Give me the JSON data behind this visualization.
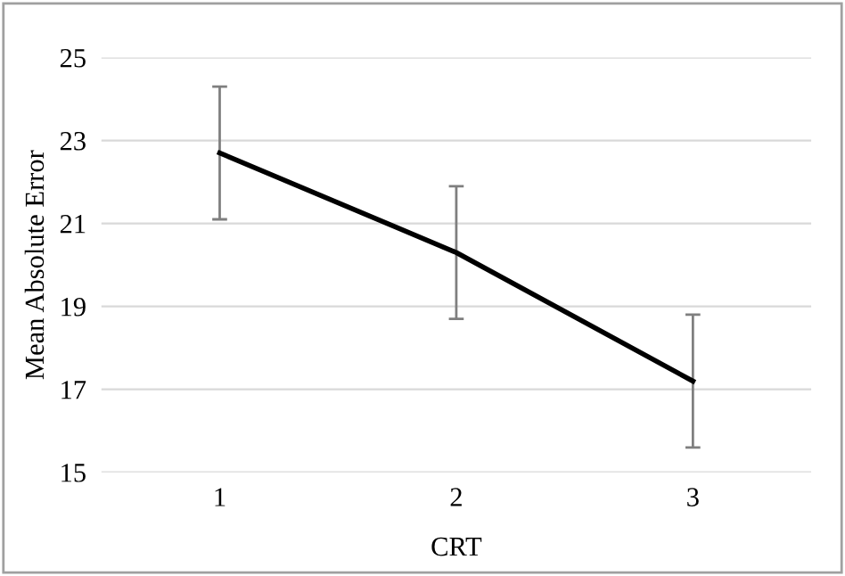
{
  "chart_data": {
    "type": "line",
    "xlabel": "CRT",
    "ylabel": "Mean Absolute Error",
    "categories": [
      "1",
      "2",
      "3"
    ],
    "series": [
      {
        "color": "#000000",
        "values": [
          22.7,
          20.3,
          17.2
        ],
        "errors": [
          1.6,
          1.6,
          1.6
        ]
      }
    ],
    "ylim": [
      15,
      25
    ],
    "yticks": [
      15,
      17,
      19,
      21,
      23,
      25
    ],
    "grid": "y",
    "marker": "none",
    "line_style": "solid"
  }
}
